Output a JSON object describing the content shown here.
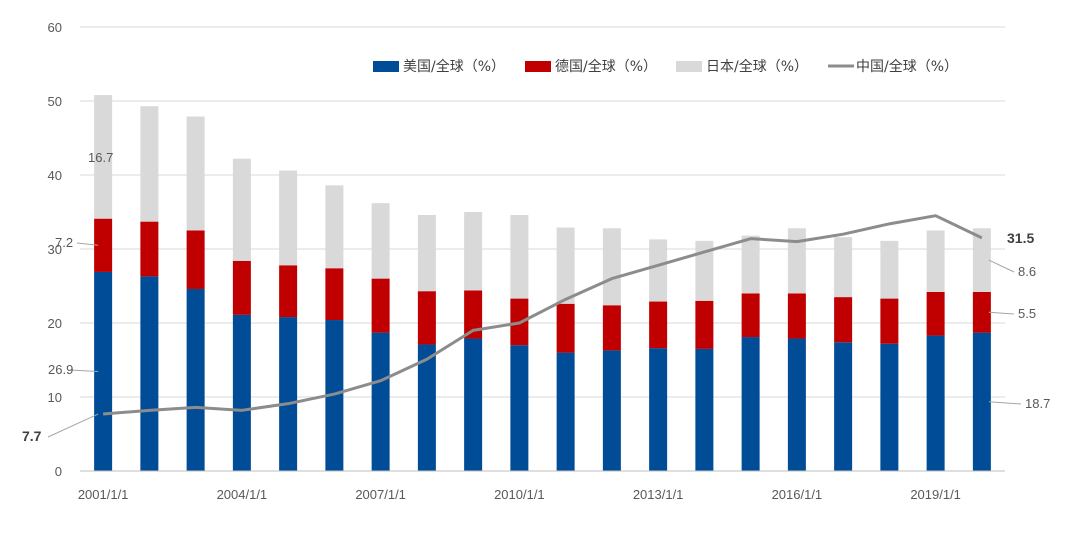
{
  "chart_data": {
    "type": "bar",
    "stacked": true,
    "categories": [
      "2001/1/1",
      "2002/1/1",
      "2003/1/1",
      "2004/1/1",
      "2005/1/1",
      "2006/1/1",
      "2007/1/1",
      "2008/1/1",
      "2009/1/1",
      "2010/1/1",
      "2011/1/1",
      "2012/1/1",
      "2013/1/1",
      "2014/1/1",
      "2015/1/1",
      "2016/1/1",
      "2017/1/1",
      "2018/1/1",
      "2019/1/1",
      "2020/1/1"
    ],
    "x_tick_labels": [
      "2001/1/1",
      "2004/1/1",
      "2007/1/1",
      "2010/1/1",
      "2013/1/1",
      "2016/1/1",
      "2019/1/1"
    ],
    "series": [
      {
        "name": "美国/全球（%）",
        "kind": "bar",
        "color": "#004C97",
        "values": [
          26.9,
          26.3,
          24.6,
          21.1,
          20.8,
          20.4,
          18.7,
          17.1,
          17.9,
          17.0,
          16.0,
          16.3,
          16.6,
          16.5,
          18.1,
          17.9,
          17.4,
          17.2,
          18.3,
          18.7
        ]
      },
      {
        "name": "德国/全球（%）",
        "kind": "bar",
        "color": "#C00000",
        "values": [
          7.2,
          7.4,
          7.9,
          7.3,
          7.0,
          7.0,
          7.3,
          7.2,
          6.5,
          6.3,
          6.6,
          6.1,
          6.3,
          6.5,
          5.9,
          6.1,
          6.1,
          6.1,
          5.9,
          5.5
        ]
      },
      {
        "name": "日本/全球（%）",
        "kind": "bar",
        "color": "#D9D9D9",
        "values": [
          16.7,
          15.6,
          15.4,
          13.8,
          12.8,
          11.2,
          10.2,
          10.3,
          10.6,
          11.3,
          10.3,
          10.4,
          8.4,
          8.1,
          7.8,
          8.8,
          8.1,
          7.8,
          8.3,
          8.6
        ]
      },
      {
        "name": "中国/全球（%）",
        "kind": "line",
        "color": "#8C8C8C",
        "values": [
          7.7,
          8.2,
          8.6,
          8.2,
          9.1,
          10.4,
          12.2,
          15.1,
          19.0,
          20.0,
          23.2,
          26.0,
          27.8,
          29.6,
          31.4,
          31.0,
          32.0,
          33.4,
          34.5,
          31.5
        ]
      }
    ],
    "ylim": [
      0,
      60
    ],
    "yticks": [
      0,
      10,
      20,
      30,
      40,
      50,
      60
    ],
    "grid": true,
    "legend_position": "top-right",
    "annotations": {
      "left": [
        {
          "text": "16.7",
          "series": "日本/全球（%）",
          "bold": false
        },
        {
          "text": "7.2",
          "series": "德国/全球（%）",
          "bold": false
        },
        {
          "text": "26.9",
          "series": "美国/全球（%）",
          "bold": false
        },
        {
          "text": "7.7",
          "series": "中国/全球（%）",
          "bold": true
        }
      ],
      "right": [
        {
          "text": "31.5",
          "series": "中国/全球（%）",
          "bold": true
        },
        {
          "text": "8.6",
          "series": "日本/全球（%）",
          "bold": false
        },
        {
          "text": "5.5",
          "series": "德国/全球（%）",
          "bold": false
        },
        {
          "text": "18.7",
          "series": "美国/全球（%）",
          "bold": false
        }
      ]
    }
  }
}
